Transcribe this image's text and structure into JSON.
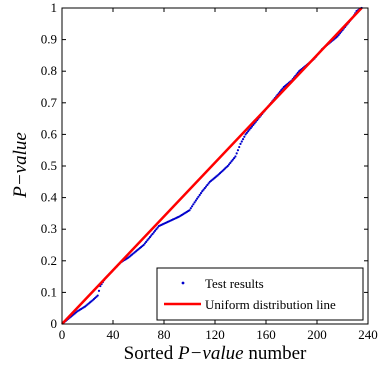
{
  "chart_data": {
    "type": "scatter",
    "title": "",
    "xlabel": {
      "italic": "P−value",
      "prefix": "Sorted ",
      "suffix": " number"
    },
    "ylabel": "P−value",
    "xlim": [
      0,
      240
    ],
    "ylim": [
      0,
      1
    ],
    "xticks": [
      0,
      40,
      80,
      120,
      160,
      200,
      240
    ],
    "yticks": [
      0,
      0.1,
      0.2,
      0.3,
      0.4,
      0.5,
      0.6,
      0.7,
      0.8,
      0.9,
      1
    ],
    "grid": false,
    "legend": {
      "position": "bottom-right"
    },
    "series": [
      {
        "name": "Test results",
        "kind": "points",
        "color": "#0000cc",
        "n": 235,
        "knots": [
          [
            0,
            0.0
          ],
          [
            6,
            0.02
          ],
          [
            12,
            0.04
          ],
          [
            18,
            0.055
          ],
          [
            24,
            0.075
          ],
          [
            28,
            0.09
          ],
          [
            30,
            0.12
          ],
          [
            34,
            0.145
          ],
          [
            40,
            0.17
          ],
          [
            46,
            0.195
          ],
          [
            52,
            0.21
          ],
          [
            58,
            0.23
          ],
          [
            64,
            0.25
          ],
          [
            70,
            0.28
          ],
          [
            76,
            0.31
          ],
          [
            84,
            0.325
          ],
          [
            92,
            0.34
          ],
          [
            100,
            0.36
          ],
          [
            104,
            0.385
          ],
          [
            110,
            0.42
          ],
          [
            116,
            0.45
          ],
          [
            122,
            0.47
          ],
          [
            130,
            0.5
          ],
          [
            136,
            0.53
          ],
          [
            140,
            0.57
          ],
          [
            144,
            0.6
          ],
          [
            150,
            0.63
          ],
          [
            156,
            0.66
          ],
          [
            162,
            0.69
          ],
          [
            168,
            0.72
          ],
          [
            174,
            0.75
          ],
          [
            180,
            0.77
          ],
          [
            186,
            0.8
          ],
          [
            192,
            0.82
          ],
          [
            198,
            0.84
          ],
          [
            204,
            0.87
          ],
          [
            210,
            0.89
          ],
          [
            216,
            0.91
          ],
          [
            222,
            0.94
          ],
          [
            228,
            0.97
          ],
          [
            231,
            0.99
          ],
          [
            235,
            1.0
          ]
        ]
      },
      {
        "name": "Uniform distribution line",
        "kind": "line",
        "color": "#ff0000",
        "x": [
          0,
          235
        ],
        "y": [
          0,
          1
        ]
      }
    ]
  }
}
